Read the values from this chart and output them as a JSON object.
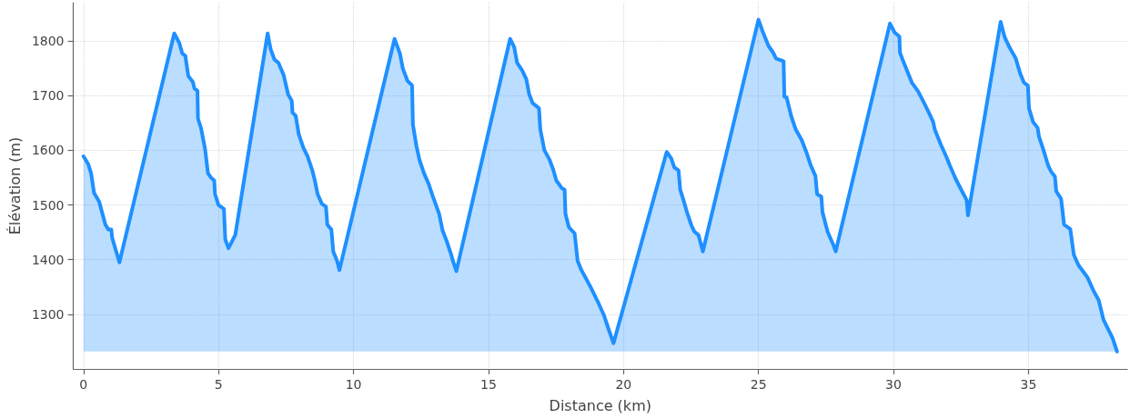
{
  "chart_data": {
    "type": "area",
    "xlabel": "Distance (km)",
    "ylabel": "Élévation (m)",
    "x": [
      0,
      0.17,
      0.28,
      0.39,
      0.58,
      0.81,
      0.92,
      1.03,
      1.06,
      1.33,
      3.36,
      3.55,
      3.66,
      3.77,
      3.88,
      4.05,
      4.11,
      4.22,
      4.24,
      4.35,
      4.5,
      4.61,
      4.72,
      4.84,
      4.87,
      5.0,
      5.2,
      5.25,
      5.37,
      5.62,
      6.82,
      6.93,
      7.07,
      7.22,
      7.41,
      7.58,
      7.71,
      7.74,
      7.86,
      7.97,
      8.14,
      8.3,
      8.47,
      8.58,
      8.67,
      8.83,
      8.98,
      9.03,
      9.18,
      9.25,
      9.39,
      9.48,
      11.52,
      11.72,
      11.83,
      12.0,
      12.17,
      12.2,
      12.33,
      12.44,
      12.61,
      12.78,
      12.95,
      13.17,
      13.3,
      13.45,
      13.62,
      13.68,
      13.81,
      15.8,
      15.95,
      16.06,
      16.25,
      16.4,
      16.51,
      16.64,
      16.87,
      16.92,
      17.07,
      17.26,
      17.4,
      17.51,
      17.71,
      17.82,
      17.85,
      17.98,
      18.19,
      18.3,
      18.44,
      18.77,
      19.05,
      19.27,
      19.44,
      19.63,
      21.6,
      21.77,
      21.88,
      22.04,
      22.1,
      22.24,
      22.35,
      22.52,
      22.63,
      22.78,
      22.94,
      25.0,
      25.15,
      25.37,
      25.54,
      25.65,
      25.93,
      25.96,
      26.04,
      26.21,
      26.38,
      26.6,
      26.77,
      26.94,
      27.11,
      27.17,
      27.33,
      27.37,
      27.56,
      27.78,
      27.86,
      29.87,
      30.05,
      30.22,
      30.24,
      30.36,
      30.54,
      30.69,
      30.91,
      31.14,
      31.31,
      31.47,
      31.53,
      31.75,
      31.95,
      32.09,
      32.31,
      32.54,
      32.71,
      32.76,
      33.97,
      34.12,
      34.3,
      34.53,
      34.69,
      34.83,
      34.98,
      35.02,
      35.17,
      35.34,
      35.39,
      35.56,
      35.73,
      35.84,
      35.98,
      36.03,
      36.21,
      36.32,
      36.55,
      36.68,
      36.85,
      37.18,
      37.41,
      37.6,
      37.78,
      37.97,
      38.11,
      38.28
    ],
    "series": [
      {
        "color": "#1e90ff",
        "values": [
          1589,
          1575,
          1558,
          1522,
          1506,
          1464,
          1455,
          1455,
          1440,
          1395,
          1814,
          1796,
          1777,
          1773,
          1736,
          1725,
          1713,
          1709,
          1658,
          1641,
          1603,
          1558,
          1550,
          1545,
          1520,
          1500,
          1493,
          1437,
          1421,
          1445,
          1814,
          1785,
          1766,
          1760,
          1738,
          1702,
          1691,
          1669,
          1663,
          1630,
          1605,
          1589,
          1564,
          1542,
          1520,
          1502,
          1497,
          1464,
          1455,
          1415,
          1398,
          1381,
          1804,
          1777,
          1749,
          1727,
          1719,
          1647,
          1608,
          1583,
          1558,
          1539,
          1514,
          1484,
          1453,
          1434,
          1409,
          1398,
          1379,
          1804,
          1789,
          1760,
          1746,
          1730,
          1702,
          1686,
          1677,
          1638,
          1600,
          1583,
          1564,
          1545,
          1531,
          1528,
          1484,
          1459,
          1448,
          1398,
          1381,
          1351,
          1323,
          1299,
          1274,
          1247,
          1597,
          1585,
          1569,
          1563,
          1528,
          1506,
          1487,
          1462,
          1451,
          1445,
          1415,
          1839,
          1818,
          1791,
          1779,
          1768,
          1763,
          1698,
          1697,
          1663,
          1638,
          1619,
          1597,
          1572,
          1553,
          1520,
          1515,
          1487,
          1451,
          1426,
          1415,
          1832,
          1815,
          1808,
          1779,
          1763,
          1741,
          1723,
          1708,
          1686,
          1669,
          1652,
          1638,
          1611,
          1589,
          1572,
          1547,
          1525,
          1509,
          1481,
          1835,
          1807,
          1788,
          1768,
          1741,
          1724,
          1718,
          1677,
          1652,
          1641,
          1625,
          1600,
          1572,
          1561,
          1552,
          1525,
          1511,
          1464,
          1456,
          1409,
          1390,
          1368,
          1343,
          1326,
          1290,
          1271,
          1257,
          1232
        ]
      }
    ],
    "xlim": [
      -0.38,
      38.66
    ],
    "ylim": [
      1200,
      1870
    ],
    "xticks": [
      0,
      5,
      10,
      15,
      20,
      25,
      30,
      35
    ],
    "yticks": [
      1300,
      1400,
      1500,
      1600,
      1700,
      1800
    ],
    "grid": true,
    "marker": "none",
    "line_style": "solid"
  }
}
